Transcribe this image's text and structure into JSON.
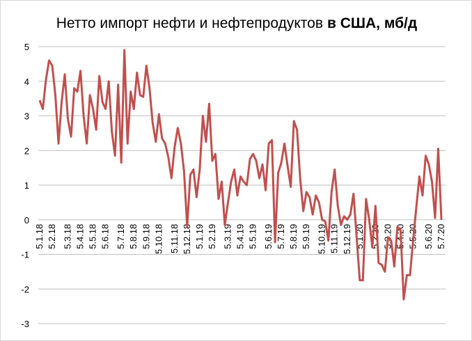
{
  "chart_data": {
    "type": "line",
    "title": [
      "Нетто импорт нефти и нефтепродуктов",
      "в США, мб/д"
    ],
    "categories": [
      "5.1.18",
      null,
      null,
      null,
      "5.2.18",
      null,
      null,
      null,
      null,
      "5.3.18",
      null,
      null,
      null,
      "5.4.18",
      null,
      null,
      null,
      "5.5.18",
      null,
      null,
      null,
      "5.6.18",
      null,
      null,
      null,
      null,
      "5.7.18",
      null,
      null,
      null,
      "5.8.18",
      null,
      null,
      null,
      "5.9.18",
      null,
      null,
      null,
      "5.10.18",
      null,
      null,
      null,
      null,
      "5.11.18",
      null,
      null,
      null,
      "5.12.18",
      null,
      null,
      null,
      "5.1.19",
      null,
      null,
      null,
      "5.2.19",
      null,
      null,
      null,
      null,
      "5.3.19",
      null,
      null,
      null,
      "5.4.19",
      null,
      null,
      null,
      "5.5.19",
      null,
      null,
      null,
      null,
      "5.6.19",
      null,
      null,
      null,
      "5.7.19",
      null,
      null,
      null,
      "5.8.19",
      null,
      null,
      null,
      "5.9.19",
      null,
      null,
      null,
      null,
      "5.10.19",
      null,
      null,
      null,
      "5.11.19",
      null,
      null,
      null,
      "5.12.19",
      null,
      null,
      null,
      "5.1.20",
      null,
      null,
      null,
      null,
      "5.2.20",
      null,
      null,
      null,
      "5.3.20",
      null,
      null,
      null,
      "5.4.20",
      null,
      null,
      null,
      "5.5.20",
      null,
      null,
      null,
      null,
      "5.6.20",
      null,
      null,
      null,
      "5.7.20"
    ],
    "series": [
      {
        "color": "#c0504d",
        "values": [
          3.45,
          3.2,
          4.05,
          4.6,
          4.45,
          3.6,
          2.2,
          3.4,
          4.2,
          2.9,
          2.4,
          3.8,
          3.7,
          4.3,
          3.0,
          2.2,
          3.6,
          3.2,
          2.6,
          4.15,
          3.4,
          3.2,
          4.0,
          2.55,
          1.85,
          3.9,
          1.65,
          4.9,
          2.2,
          3.7,
          3.2,
          4.25,
          3.6,
          3.55,
          4.45,
          3.8,
          2.8,
          2.25,
          3.05,
          2.35,
          2.2,
          1.8,
          1.2,
          2.1,
          2.65,
          2.2,
          1.4,
          -0.2,
          1.3,
          1.45,
          0.65,
          1.45,
          3.0,
          2.25,
          3.35,
          1.7,
          1.9,
          0.6,
          1.1,
          -0.15,
          0.5,
          1.1,
          1.45,
          0.7,
          1.25,
          1.1,
          1.0,
          1.75,
          1.9,
          1.7,
          1.2,
          1.6,
          0.85,
          2.2,
          2.3,
          -0.65,
          1.35,
          1.65,
          2.2,
          1.55,
          0.95,
          2.85,
          2.6,
          1.2,
          0.25,
          0.8,
          0.65,
          0.15,
          0.7,
          0.5,
          0.0,
          -0.05,
          -0.6,
          0.8,
          1.45,
          0.4,
          -0.15,
          0.1,
          0.0,
          0.15,
          0.75,
          -0.5,
          -1.75,
          -1.75,
          0.6,
          0.0,
          -0.8,
          0.4,
          -1.25,
          -1.3,
          -1.5,
          -0.5,
          -0.6,
          -1.35,
          -0.2,
          -0.3,
          -2.3,
          -1.6,
          -1.6,
          -0.6,
          0.35,
          1.25,
          0.7,
          1.85,
          1.6,
          1.1,
          0.05,
          2.05,
          0.0
        ]
      }
    ],
    "ylim": [
      -3,
      5
    ],
    "yticks": [
      -3,
      -2,
      -1,
      0,
      1,
      2,
      3,
      4,
      5
    ],
    "grid": true
  }
}
